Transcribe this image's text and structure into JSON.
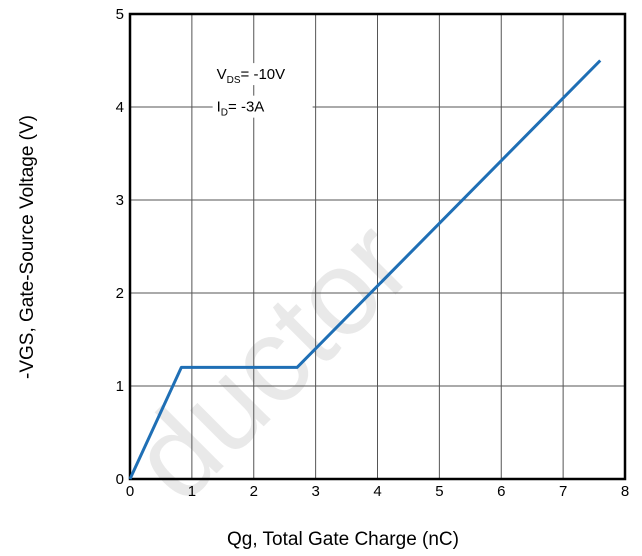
{
  "chart_data": {
    "type": "line",
    "xlabel": "Qg, Total Gate Charge (nC)",
    "ylabel": "-VGS, Gate-Source Voltage (V)",
    "xlim": [
      0,
      8
    ],
    "ylim": [
      0,
      5
    ],
    "x_ticks": [
      "0",
      "1",
      "2",
      "3",
      "4",
      "5",
      "6",
      "7",
      "8"
    ],
    "y_ticks": [
      "0",
      "1",
      "2",
      "3",
      "4",
      "5"
    ],
    "grid": true,
    "series": [
      {
        "x": [
          0,
          0.83,
          2.7,
          7.6
        ],
        "y": [
          0,
          1.2,
          1.2,
          4.5
        ],
        "color": "#1f6fb5"
      }
    ],
    "annotations": [
      {
        "main": "V",
        "sub": "DS",
        "rest": "= -10V",
        "x": 1.4,
        "y": 4.3
      },
      {
        "main": "I",
        "sub": "D",
        "rest": "= -3A",
        "x": 1.4,
        "y": 3.95
      }
    ],
    "watermark": "ductor"
  }
}
